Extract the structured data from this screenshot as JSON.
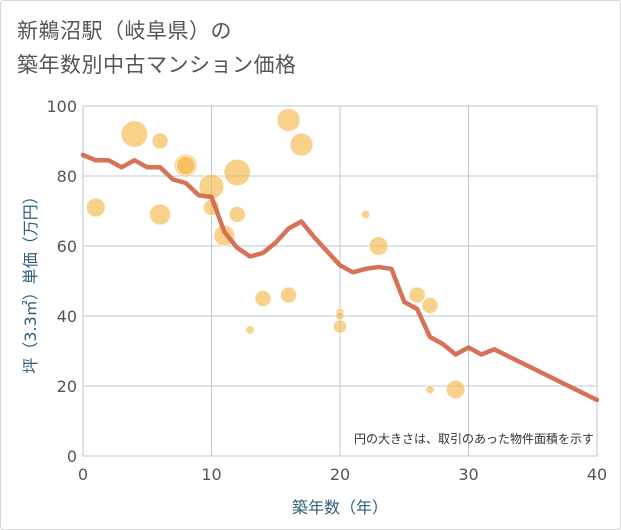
{
  "title_line1": "新鵜沼駅（岐阜県）の",
  "title_line2": "築年数別中古マンション価格",
  "chart_data": {
    "type": "scatter",
    "xlabel": "築年数（年）",
    "ylabel": "坪（3.3㎡）単価（万円）",
    "xlim": [
      0,
      40
    ],
    "ylim": [
      0,
      100
    ],
    "x_ticks": [
      "0",
      "10",
      "20",
      "30",
      "40"
    ],
    "y_ticks": [
      "0",
      "20",
      "40",
      "60",
      "80",
      "100"
    ],
    "grid": true,
    "note": "円の大きさは、取引のあった物件面積を示す",
    "bubble_color": "#f5b94d",
    "line_color": "#d4664a",
    "bubbles": [
      {
        "x": 1,
        "y": 71,
        "size": 2
      },
      {
        "x": 4,
        "y": 92,
        "size": 4
      },
      {
        "x": 6,
        "y": 90,
        "size": 1.5
      },
      {
        "x": 6,
        "y": 69,
        "size": 2.5
      },
      {
        "x": 8,
        "y": 83,
        "size": 3
      },
      {
        "x": 8,
        "y": 83,
        "size": 2
      },
      {
        "x": 10,
        "y": 77,
        "size": 3.5
      },
      {
        "x": 10,
        "y": 71,
        "size": 1.5
      },
      {
        "x": 11,
        "y": 63,
        "size": 2.5
      },
      {
        "x": 12,
        "y": 81,
        "size": 4
      },
      {
        "x": 12,
        "y": 69,
        "size": 1.5
      },
      {
        "x": 13,
        "y": 36,
        "size": 0.4
      },
      {
        "x": 14,
        "y": 45,
        "size": 1.5
      },
      {
        "x": 16,
        "y": 96,
        "size": 3
      },
      {
        "x": 16,
        "y": 46,
        "size": 1.5
      },
      {
        "x": 17,
        "y": 89,
        "size": 3
      },
      {
        "x": 20,
        "y": 41,
        "size": 0.4
      },
      {
        "x": 20,
        "y": 40,
        "size": 0.4
      },
      {
        "x": 20,
        "y": 37,
        "size": 1
      },
      {
        "x": 22,
        "y": 69,
        "size": 0.4
      },
      {
        "x": 23,
        "y": 60,
        "size": 2
      },
      {
        "x": 26,
        "y": 46,
        "size": 1.5
      },
      {
        "x": 27,
        "y": 43,
        "size": 1.5
      },
      {
        "x": 27,
        "y": 19,
        "size": 0.4
      },
      {
        "x": 29,
        "y": 19,
        "size": 2
      }
    ],
    "line": {
      "x": [
        0,
        1,
        2,
        3,
        4,
        5,
        6,
        7,
        8,
        9,
        10,
        11,
        12,
        13,
        14,
        15,
        16,
        17,
        18,
        19,
        20,
        21,
        22,
        23,
        24,
        25,
        26,
        27,
        28,
        29,
        30,
        31,
        32,
        40
      ],
      "y": [
        86,
        84.5,
        84.5,
        82.5,
        84.5,
        82.5,
        82.5,
        79,
        78,
        74.5,
        74,
        64,
        59.5,
        57,
        58,
        61,
        65,
        67,
        62.5,
        58.5,
        54.5,
        52.5,
        53.5,
        54,
        53.5,
        44,
        42,
        34,
        32,
        29,
        31,
        29,
        30.5,
        16
      ]
    }
  }
}
